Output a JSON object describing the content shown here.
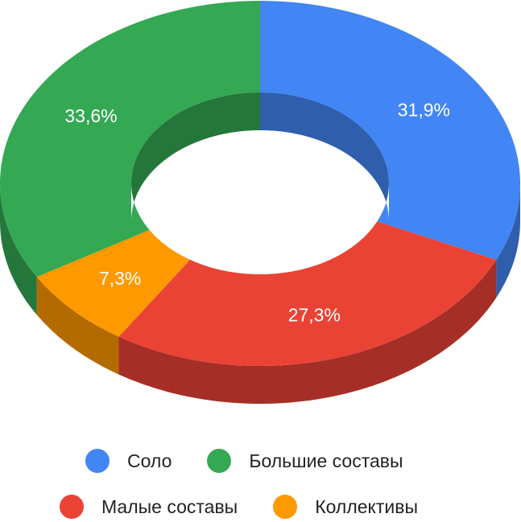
{
  "chart_data": {
    "type": "pie",
    "subtype": "donut-3d",
    "title": "",
    "series": [
      {
        "name": "Соло",
        "value": 31.9,
        "label": "31,9%",
        "color": "#4285F4",
        "side_color": "#2F5EAD"
      },
      {
        "name": "Малые составы",
        "value": 27.3,
        "label": "27,3%",
        "color": "#EA4335",
        "side_color": "#A52F26"
      },
      {
        "name": "Коллективы",
        "value": 7.3,
        "label": "7,3%",
        "color": "#FF9900",
        "side_color": "#B36B00"
      },
      {
        "name": "Большие составы",
        "value": 33.6,
        "label": "33,6%",
        "color": "#34A853",
        "side_color": "#24763A"
      }
    ],
    "legend": {
      "placement": "bottom",
      "rows": [
        [
          "Соло",
          "Большие составы"
        ],
        [
          "Малые составы",
          "Коллективы"
        ]
      ]
    }
  }
}
